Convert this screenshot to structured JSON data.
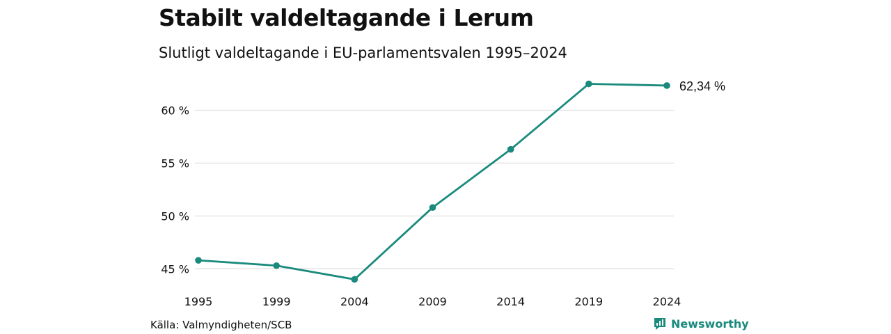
{
  "header": {
    "title": "Stabilt valdeltagande i Lerum",
    "subtitle": "Slutligt valdeltagande i EU-parlamentsvalen 1995–2024"
  },
  "footer": {
    "source": "Källa: Valmyndigheten/SCB",
    "brand": "Newsworthy",
    "brand_icon": "newsworthy-logo-icon"
  },
  "colors": {
    "line": "#1a8a7d",
    "grid": "#e2e2e2",
    "text": "#111111"
  },
  "chart_data": {
    "type": "line",
    "title": "Stabilt valdeltagande i Lerum",
    "subtitle": "Slutligt valdeltagande i EU-parlamentsvalen 1995–2024",
    "xlabel": "",
    "ylabel": "",
    "categories": [
      "1995",
      "1999",
      "2004",
      "2009",
      "2014",
      "2019",
      "2024"
    ],
    "values": [
      45.8,
      45.3,
      44.0,
      50.8,
      56.3,
      62.5,
      62.34
    ],
    "yticks": [
      45,
      50,
      55,
      60
    ],
    "ytick_labels": [
      "45 %",
      "50 %",
      "55 %",
      "60 %"
    ],
    "ylim": [
      43.9,
      62.6
    ],
    "grid": true,
    "end_label": "62,34 %"
  }
}
